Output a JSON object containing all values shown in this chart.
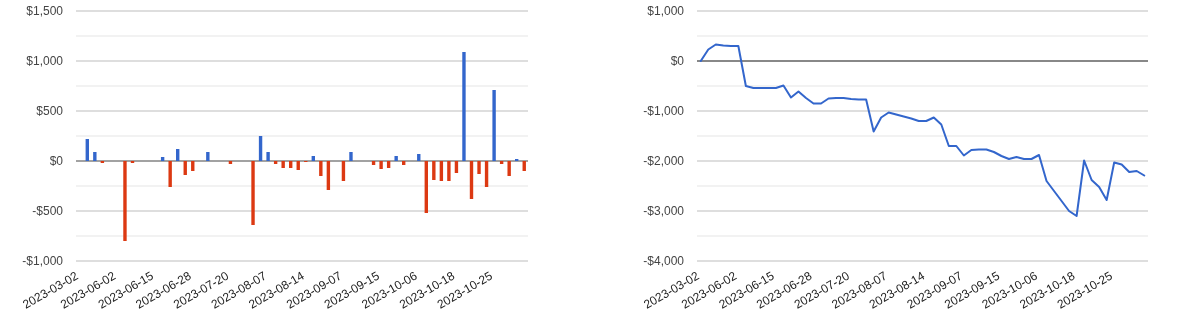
{
  "chart_data": [
    {
      "type": "bar",
      "categories": [
        "2023-03-02",
        null,
        null,
        null,
        null,
        "2023-06-02",
        null,
        null,
        null,
        null,
        "2023-06-15",
        null,
        null,
        null,
        null,
        "2023-06-28",
        null,
        null,
        null,
        null,
        "2023-07-20",
        null,
        null,
        null,
        null,
        "2023-08-07",
        null,
        null,
        null,
        null,
        "2023-08-14",
        null,
        null,
        null,
        null,
        "2023-09-07",
        null,
        null,
        null,
        null,
        "2023-09-15",
        null,
        null,
        null,
        null,
        "2023-10-06",
        null,
        null,
        null,
        null,
        "2023-10-18",
        null,
        null,
        null,
        null,
        "2023-10-25",
        null,
        null,
        null,
        null
      ],
      "values": [
        0,
        220,
        90,
        -20,
        0,
        0,
        -800,
        -20,
        0,
        0,
        0,
        40,
        -260,
        120,
        -140,
        -100,
        0,
        90,
        0,
        0,
        -30,
        0,
        0,
        -640,
        250,
        90,
        -30,
        -70,
        -70,
        -90,
        -10,
        50,
        -150,
        -290,
        0,
        -200,
        90,
        0,
        0,
        -40,
        -80,
        -70,
        50,
        -40,
        0,
        70,
        -520,
        -190,
        -200,
        -200,
        -120,
        1090,
        -380,
        -130,
        -260,
        710,
        -30,
        -150,
        20,
        -100
      ],
      "colors": [
        "#3366cc",
        "#3366cc",
        "#3366cc",
        "#dc3912",
        "#3366cc",
        "#3366cc",
        "#dc3912",
        "#dc3912",
        "#3366cc",
        "#3366cc",
        "#3366cc",
        "#3366cc",
        "#dc3912",
        "#3366cc",
        "#dc3912",
        "#dc3912",
        "#3366cc",
        "#3366cc",
        "#3366cc",
        "#3366cc",
        "#dc3912",
        "#3366cc",
        "#3366cc",
        "#dc3912",
        "#3366cc",
        "#3366cc",
        "#dc3912",
        "#dc3912",
        "#dc3912",
        "#dc3912",
        "#dc3912",
        "#3366cc",
        "#dc3912",
        "#dc3912",
        "#3366cc",
        "#dc3912",
        "#3366cc",
        "#3366cc",
        "#3366cc",
        "#dc3912",
        "#dc3912",
        "#dc3912",
        "#3366cc",
        "#dc3912",
        "#3366cc",
        "#3366cc",
        "#dc3912",
        "#dc3912",
        "#dc3912",
        "#dc3912",
        "#dc3912",
        "#3366cc",
        "#dc3912",
        "#dc3912",
        "#dc3912",
        "#3366cc",
        "#dc3912",
        "#dc3912",
        "#3366cc",
        "#dc3912"
      ],
      "ylim": [
        -1000,
        1500
      ],
      "yticks": [
        {
          "value": -1000,
          "label": "-$1,000"
        },
        {
          "value": -750,
          "label": null
        },
        {
          "value": -500,
          "label": "-$500"
        },
        {
          "value": -250,
          "label": null
        },
        {
          "value": 0,
          "label": "$0"
        },
        {
          "value": 250,
          "label": null
        },
        {
          "value": 500,
          "label": "$500"
        },
        {
          "value": 750,
          "label": null
        },
        {
          "value": 1000,
          "label": "$1,000"
        },
        {
          "value": 1250,
          "label": null
        },
        {
          "value": 1500,
          "label": "$1,500"
        }
      ],
      "grid": "y"
    },
    {
      "type": "line",
      "categories": [
        "2023-03-02",
        null,
        null,
        null,
        null,
        "2023-06-02",
        null,
        null,
        null,
        null,
        "2023-06-15",
        null,
        null,
        null,
        null,
        "2023-06-28",
        null,
        null,
        null,
        null,
        "2023-07-20",
        null,
        null,
        null,
        null,
        "2023-08-07",
        null,
        null,
        null,
        null,
        "2023-08-14",
        null,
        null,
        null,
        null,
        "2023-09-07",
        null,
        null,
        null,
        null,
        "2023-09-15",
        null,
        null,
        null,
        null,
        "2023-10-06",
        null,
        null,
        null,
        null,
        "2023-10-18",
        null,
        null,
        null,
        null,
        "2023-10-25",
        null,
        null,
        null,
        null
      ],
      "values": [
        0,
        230,
        330,
        310,
        300,
        300,
        -500,
        -540,
        -540,
        -540,
        -540,
        -490,
        -730,
        -610,
        -740,
        -850,
        -850,
        -750,
        -740,
        -740,
        -760,
        -770,
        -770,
        -1410,
        -1130,
        -1030,
        -1070,
        -1110,
        -1150,
        -1200,
        -1200,
        -1130,
        -1270,
        -1700,
        -1700,
        -1890,
        -1780,
        -1770,
        -1770,
        -1820,
        -1900,
        -1960,
        -1920,
        -1960,
        -1960,
        -1880,
        -2400,
        -2600,
        -2800,
        -3000,
        -3100,
        -1990,
        -2380,
        -2520,
        -2780,
        -2030,
        -2070,
        -2220,
        -2200,
        -2290
      ],
      "color": "#3366cc",
      "ylim": [
        -4000,
        1000
      ],
      "yticks": [
        {
          "value": -4000,
          "label": "-$4,000"
        },
        {
          "value": -3500,
          "label": null
        },
        {
          "value": -3000,
          "label": "-$3,000"
        },
        {
          "value": -2500,
          "label": null
        },
        {
          "value": -2000,
          "label": "-$2,000"
        },
        {
          "value": -1500,
          "label": null
        },
        {
          "value": -1000,
          "label": "-$1,000"
        },
        {
          "value": -500,
          "label": null
        },
        {
          "value": 0,
          "label": "$0"
        },
        {
          "value": 500,
          "label": null
        },
        {
          "value": 1000,
          "label": "$1,000"
        }
      ],
      "grid": "y"
    }
  ]
}
